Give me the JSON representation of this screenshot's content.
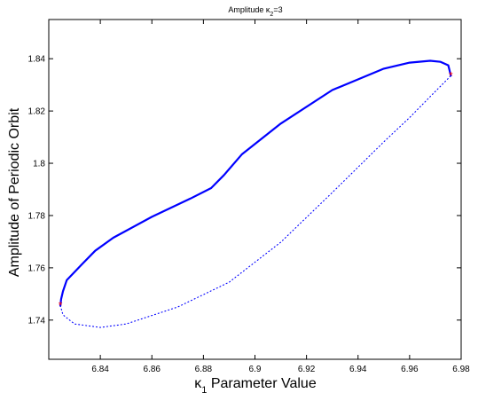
{
  "chart_data": {
    "type": "line",
    "title": {
      "main": "Amplitude κ",
      "sub": "2",
      "tail": "=3"
    },
    "xlabel": {
      "main": "κ",
      "sub": "1",
      "tail": " Parameter Value"
    },
    "ylabel": "Amplitude of Periodic Orbit",
    "xlim": [
      6.82,
      6.98
    ],
    "ylim": [
      1.725,
      1.855
    ],
    "xticks": [
      "6.84",
      "6.86",
      "6.88",
      "6.9",
      "6.92",
      "6.94",
      "6.96",
      "6.98"
    ],
    "yticks": [
      "1.74",
      "1.76",
      "1.78",
      "1.8",
      "1.82",
      "1.84"
    ],
    "grid": false,
    "colors": {
      "series": "#0000ff",
      "marker": "#ff0000",
      "axis": "#000000"
    },
    "series": [
      {
        "style": "solid",
        "x": [
          6.8245,
          6.8248,
          6.8255,
          6.827,
          6.833,
          6.838,
          6.845,
          6.86,
          6.875,
          6.883,
          6.888,
          6.895,
          6.91,
          6.93,
          6.95,
          6.96,
          6.968,
          6.972,
          6.975,
          6.976
        ],
        "y": [
          1.7455,
          1.748,
          1.751,
          1.7553,
          1.7615,
          1.7665,
          1.7715,
          1.7795,
          1.7865,
          1.7905,
          1.7955,
          1.8035,
          1.8152,
          1.828,
          1.8362,
          1.8385,
          1.8392,
          1.8388,
          1.8375,
          1.8335
        ]
      },
      {
        "style": "dotted",
        "x": [
          6.8245,
          6.8255,
          6.83,
          6.84,
          6.85,
          6.87,
          6.89,
          6.91,
          6.93,
          6.95,
          6.96,
          6.968,
          6.973,
          6.975,
          6.976
        ],
        "y": [
          1.7455,
          1.742,
          1.7385,
          1.7372,
          1.7385,
          1.745,
          1.7545,
          1.7698,
          1.7888,
          1.8082,
          1.8175,
          1.8255,
          1.8305,
          1.8325,
          1.8335
        ]
      }
    ],
    "markers": [
      {
        "symbol": "*",
        "x": 6.8245,
        "y": 1.7455
      },
      {
        "symbol": "*",
        "x": 6.976,
        "y": 1.8335
      }
    ]
  }
}
